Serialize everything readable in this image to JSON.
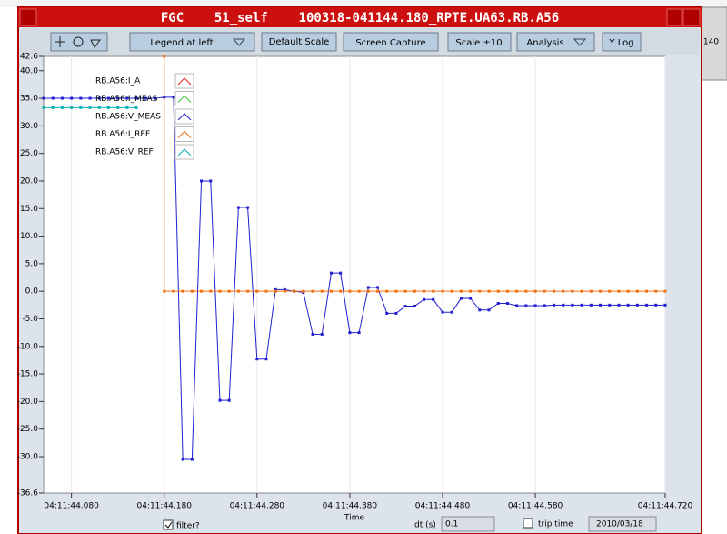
{
  "window": {
    "title": "FGC    51_self    100318-041144.180_RPTE.UA63.RB.A56",
    "toolbar": {
      "legend": "Legend at left",
      "default_scale": "Default Scale",
      "screen_capture": "Screen Capture",
      "scale": "Scale ±10",
      "analysis": "Analysis",
      "ylog": "Y Log"
    },
    "footer": {
      "filter": "filter?",
      "dt_label": "dt (s)",
      "dt_value": "0.1",
      "trip_time": "trip time",
      "date": "2010/03/18"
    }
  },
  "background": {
    "text": ".140"
  },
  "chart_data": {
    "type": "line",
    "xlabel": "Time",
    "xlim": [
      0.05,
      0.72
    ],
    "ylim": [
      -36.6,
      42.6
    ],
    "xticks": [
      {
        "value": 0.08,
        "label": "04:11:44.080"
      },
      {
        "value": 0.18,
        "label": "04:11:44.180"
      },
      {
        "value": 0.28,
        "label": "04:11:44.280"
      },
      {
        "value": 0.38,
        "label": "04:11:44.380"
      },
      {
        "value": 0.48,
        "label": "04:11:44.480"
      },
      {
        "value": 0.58,
        "label": "04:11:44.580"
      },
      {
        "value": 0.72,
        "label": "04:11:44.720"
      }
    ],
    "yticks": [
      {
        "value": 42.6,
        "label": "42.6"
      },
      {
        "value": 40,
        "label": "40.0"
      },
      {
        "value": 35,
        "label": "35.0"
      },
      {
        "value": 30,
        "label": "30.0"
      },
      {
        "value": 25,
        "label": "25.0"
      },
      {
        "value": 20,
        "label": "20.0"
      },
      {
        "value": 15,
        "label": "15.0"
      },
      {
        "value": 10,
        "label": "10.0"
      },
      {
        "value": 5,
        "label": "5.0"
      },
      {
        "value": 0,
        "label": "0.0"
      },
      {
        "value": -5,
        "label": "-5.0"
      },
      {
        "value": -10,
        "label": "-10.0"
      },
      {
        "value": -15,
        "label": "-15.0"
      },
      {
        "value": -20,
        "label": "-20.0"
      },
      {
        "value": -25,
        "label": "-25.0"
      },
      {
        "value": -30,
        "label": "-30.0"
      },
      {
        "value": -36.6,
        "label": "-36.6"
      }
    ],
    "grid": true,
    "legend": "left",
    "series": [
      {
        "name": "RB.A56:I_A",
        "color": "#e02020",
        "x": [],
        "values": []
      },
      {
        "name": "RB.A56:I_MEAS",
        "color": "#40c040",
        "x": [],
        "values": []
      },
      {
        "name": "RB.A56:V_MEAS",
        "color": "#2020d0",
        "x": [
          0.05,
          0.06,
          0.07,
          0.08,
          0.09,
          0.1,
          0.11,
          0.12,
          0.13,
          0.14,
          0.15,
          0.16,
          0.17,
          0.18,
          0.19,
          0.2,
          0.21,
          0.22,
          0.23,
          0.24,
          0.25,
          0.26,
          0.27,
          0.28,
          0.29,
          0.3,
          0.31,
          0.32,
          0.33,
          0.34,
          0.35,
          0.36,
          0.37,
          0.38,
          0.39,
          0.4,
          0.41,
          0.42,
          0.43,
          0.44,
          0.45,
          0.46,
          0.47,
          0.48,
          0.49,
          0.5,
          0.51,
          0.52,
          0.53,
          0.54,
          0.55,
          0.56,
          0.57,
          0.58,
          0.59,
          0.6,
          0.61,
          0.62,
          0.63,
          0.64,
          0.65,
          0.66,
          0.67,
          0.68,
          0.69,
          0.7,
          0.71,
          0.72
        ],
        "values": [
          35,
          35,
          35,
          35,
          35,
          35,
          35,
          35,
          35,
          35,
          35,
          35,
          35,
          35.2,
          35.2,
          -30.5,
          -30.5,
          20,
          20,
          -19.8,
          -19.8,
          15.2,
          15.2,
          -12.3,
          -12.3,
          0.3,
          0.3,
          0,
          -0.2,
          -7.8,
          -7.8,
          3.3,
          3.3,
          -7.5,
          -7.5,
          0.7,
          0.7,
          -4,
          -4,
          -2.7,
          -2.7,
          -1.5,
          -1.5,
          -3.8,
          -3.8,
          -1.3,
          -1.3,
          -3.4,
          -3.4,
          -2.2,
          -2.2,
          -2.6,
          -2.6,
          -2.6,
          -2.6,
          -2.5,
          -2.5,
          -2.5,
          -2.5,
          -2.5,
          -2.5,
          -2.5,
          -2.5,
          -2.5,
          -2.5,
          -2.5,
          -2.5,
          -2.5
        ]
      },
      {
        "name": "RB.A56:I_REF",
        "color": "#f07010",
        "x": [
          0.18,
          0.18,
          0.19,
          0.2,
          0.21,
          0.22,
          0.23,
          0.24,
          0.25,
          0.26,
          0.27,
          0.28,
          0.29,
          0.3,
          0.31,
          0.32,
          0.33,
          0.34,
          0.35,
          0.36,
          0.37,
          0.38,
          0.39,
          0.4,
          0.41,
          0.42,
          0.43,
          0.44,
          0.45,
          0.46,
          0.47,
          0.48,
          0.49,
          0.5,
          0.51,
          0.52,
          0.53,
          0.54,
          0.55,
          0.56,
          0.57,
          0.58,
          0.59,
          0.6,
          0.61,
          0.62,
          0.63,
          0.64,
          0.65,
          0.66,
          0.67,
          0.68,
          0.69,
          0.7,
          0.71,
          0.72
        ],
        "values": [
          42.6,
          0,
          0,
          0,
          0,
          0,
          0,
          0,
          0,
          0,
          0,
          0,
          0,
          0,
          0,
          0,
          0,
          0,
          0,
          0,
          0,
          0,
          0,
          0,
          0,
          0,
          0,
          0,
          0,
          0,
          0,
          0,
          0,
          0,
          0,
          0,
          0,
          0,
          0,
          0,
          0,
          0,
          0,
          0,
          0,
          0,
          0,
          0,
          0,
          0,
          0,
          0,
          0,
          0,
          0,
          0
        ]
      },
      {
        "name": "RB.A56:V_REF",
        "color": "#10b0b0",
        "x": [
          0.05,
          0.06,
          0.07,
          0.08,
          0.09,
          0.1,
          0.11,
          0.12,
          0.13,
          0.14,
          0.15
        ],
        "values": [
          33.3,
          33.3,
          33.3,
          33.3,
          33.3,
          33.3,
          33.3,
          33.3,
          33.3,
          33.3,
          33.3
        ]
      }
    ]
  }
}
